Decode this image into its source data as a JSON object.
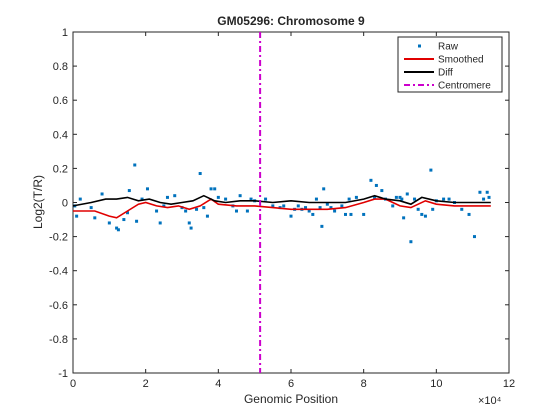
{
  "chart_data": {
    "type": "scatter",
    "title": "GM05296: Chromosome 9",
    "xlabel": "Genomic Position",
    "ylabel": "Log2(T/R)",
    "x_exponent_label": "×10⁴",
    "xlim": [
      0,
      12
    ],
    "ylim": [
      -1,
      1
    ],
    "x_ticks": [
      0,
      2,
      4,
      6,
      8,
      10,
      12
    ],
    "x_tick_labels": [
      "0",
      "2",
      "4",
      "6",
      "8",
      "10",
      "12"
    ],
    "y_ticks": [
      -1,
      -0.8,
      -0.6,
      -0.4,
      -0.2,
      0,
      0.2,
      0.4,
      0.6,
      0.8,
      1
    ],
    "y_tick_labels": [
      "-1",
      "-0.8",
      "-0.6",
      "-0.4",
      "-0.2",
      "0",
      "0.2",
      "0.4",
      "0.6",
      "0.8",
      "1"
    ],
    "grid": false,
    "legend_position": "top-right",
    "centromere_x": 5.15,
    "series": [
      {
        "name": "Raw",
        "kind": "points",
        "color": "#0072BD",
        "points": [
          [
            0.05,
            -0.02
          ],
          [
            0.1,
            -0.08
          ],
          [
            0.2,
            0.02
          ],
          [
            0.5,
            -0.03
          ],
          [
            0.6,
            -0.09
          ],
          [
            0.8,
            0.05
          ],
          [
            1.0,
            -0.12
          ],
          [
            1.2,
            -0.15
          ],
          [
            1.25,
            -0.16
          ],
          [
            1.4,
            -0.1
          ],
          [
            1.5,
            -0.06
          ],
          [
            1.55,
            0.07
          ],
          [
            1.7,
            0.22
          ],
          [
            1.75,
            -0.11
          ],
          [
            1.9,
            0.02
          ],
          [
            2.05,
            0.08
          ],
          [
            2.3,
            -0.05
          ],
          [
            2.4,
            -0.12
          ],
          [
            2.5,
            -0.02
          ],
          [
            2.6,
            0.03
          ],
          [
            2.8,
            0.04
          ],
          [
            3.0,
            -0.03
          ],
          [
            3.1,
            -0.05
          ],
          [
            3.2,
            -0.12
          ],
          [
            3.25,
            -0.15
          ],
          [
            3.4,
            -0.04
          ],
          [
            3.5,
            0.17
          ],
          [
            3.6,
            -0.03
          ],
          [
            3.7,
            -0.08
          ],
          [
            3.8,
            0.08
          ],
          [
            3.9,
            0.08
          ],
          [
            4.0,
            0.03
          ],
          [
            4.2,
            0.02
          ],
          [
            4.4,
            -0.02
          ],
          [
            4.5,
            -0.05
          ],
          [
            4.6,
            0.04
          ],
          [
            4.8,
            -0.05
          ],
          [
            4.9,
            0.02
          ],
          [
            5.0,
            0.01
          ],
          [
            5.3,
            0.02
          ],
          [
            5.5,
            -0.02
          ],
          [
            5.7,
            -0.03
          ],
          [
            5.8,
            -0.02
          ],
          [
            6.0,
            -0.08
          ],
          [
            6.1,
            -0.04
          ],
          [
            6.2,
            -0.02
          ],
          [
            6.3,
            -0.04
          ],
          [
            6.4,
            -0.03
          ],
          [
            6.5,
            -0.05
          ],
          [
            6.6,
            -0.07
          ],
          [
            6.7,
            0.02
          ],
          [
            6.8,
            -0.03
          ],
          [
            6.85,
            -0.14
          ],
          [
            6.9,
            0.08
          ],
          [
            7.0,
            -0.01
          ],
          [
            7.1,
            -0.03
          ],
          [
            7.2,
            -0.05
          ],
          [
            7.4,
            -0.02
          ],
          [
            7.5,
            -0.07
          ],
          [
            7.6,
            0.02
          ],
          [
            7.65,
            -0.07
          ],
          [
            7.8,
            0.03
          ],
          [
            8.0,
            -0.07
          ],
          [
            8.2,
            0.13
          ],
          [
            8.3,
            0.03
          ],
          [
            8.35,
            0.1
          ],
          [
            8.5,
            0.07
          ],
          [
            8.6,
            0.02
          ],
          [
            8.8,
            -0.02
          ],
          [
            8.9,
            0.03
          ],
          [
            9.0,
            0.03
          ],
          [
            9.05,
            0.02
          ],
          [
            9.1,
            -0.09
          ],
          [
            9.2,
            0.05
          ],
          [
            9.3,
            -0.23
          ],
          [
            9.4,
            0.02
          ],
          [
            9.5,
            -0.04
          ],
          [
            9.6,
            -0.07
          ],
          [
            9.7,
            -0.08
          ],
          [
            9.85,
            0.19
          ],
          [
            9.9,
            -0.04
          ],
          [
            10.0,
            0.01
          ],
          [
            10.2,
            0.02
          ],
          [
            10.35,
            0.02
          ],
          [
            10.5,
            0.0
          ],
          [
            10.7,
            -0.04
          ],
          [
            10.9,
            -0.07
          ],
          [
            11.05,
            -0.2
          ],
          [
            11.2,
            0.06
          ],
          [
            11.3,
            0.02
          ],
          [
            11.4,
            0.06
          ],
          [
            11.45,
            0.03
          ]
        ]
      },
      {
        "name": "Smoothed",
        "kind": "line",
        "color": "#E00000",
        "points": [
          [
            0.0,
            -0.05
          ],
          [
            0.6,
            -0.05
          ],
          [
            1.0,
            -0.08
          ],
          [
            1.2,
            -0.09
          ],
          [
            1.5,
            -0.05
          ],
          [
            1.8,
            -0.01
          ],
          [
            2.0,
            0.0
          ],
          [
            2.3,
            -0.02
          ],
          [
            2.6,
            -0.03
          ],
          [
            2.9,
            -0.02
          ],
          [
            3.2,
            -0.04
          ],
          [
            3.5,
            -0.02
          ],
          [
            3.8,
            0.02
          ],
          [
            4.0,
            -0.01
          ],
          [
            4.5,
            -0.02
          ],
          [
            5.0,
            -0.02
          ],
          [
            5.5,
            -0.03
          ],
          [
            6.0,
            -0.04
          ],
          [
            6.5,
            -0.04
          ],
          [
            7.0,
            -0.04
          ],
          [
            7.5,
            -0.03
          ],
          [
            8.0,
            0.0
          ],
          [
            8.3,
            0.02
          ],
          [
            8.6,
            0.02
          ],
          [
            9.0,
            -0.02
          ],
          [
            9.3,
            -0.03
          ],
          [
            9.7,
            0.01
          ],
          [
            10.0,
            -0.01
          ],
          [
            10.5,
            -0.02
          ],
          [
            11.0,
            -0.02
          ],
          [
            11.5,
            -0.02
          ]
        ]
      },
      {
        "name": "Diff",
        "kind": "line",
        "color": "#000000",
        "points": [
          [
            0.0,
            -0.02
          ],
          [
            0.5,
            0.0
          ],
          [
            0.9,
            0.02
          ],
          [
            1.2,
            0.02
          ],
          [
            1.5,
            0.03
          ],
          [
            1.8,
            0.01
          ],
          [
            2.1,
            0.02
          ],
          [
            2.4,
            0.0
          ],
          [
            2.7,
            -0.01
          ],
          [
            3.0,
            0.0
          ],
          [
            3.3,
            0.01
          ],
          [
            3.6,
            0.04
          ],
          [
            3.9,
            0.01
          ],
          [
            4.2,
            0.0
          ],
          [
            4.6,
            0.01
          ],
          [
            5.0,
            0.01
          ],
          [
            5.5,
            0.0
          ],
          [
            6.0,
            0.01
          ],
          [
            6.5,
            0.0
          ],
          [
            7.0,
            0.0
          ],
          [
            7.5,
            0.0
          ],
          [
            8.0,
            0.02
          ],
          [
            8.3,
            0.04
          ],
          [
            8.6,
            0.02
          ],
          [
            9.0,
            0.01
          ],
          [
            9.3,
            -0.01
          ],
          [
            9.6,
            0.03
          ],
          [
            10.0,
            0.01
          ],
          [
            10.5,
            0.0
          ],
          [
            11.0,
            0.0
          ],
          [
            11.5,
            0.0
          ]
        ]
      },
      {
        "name": "Centromere",
        "kind": "vline",
        "color": "#CC00CC"
      }
    ]
  }
}
